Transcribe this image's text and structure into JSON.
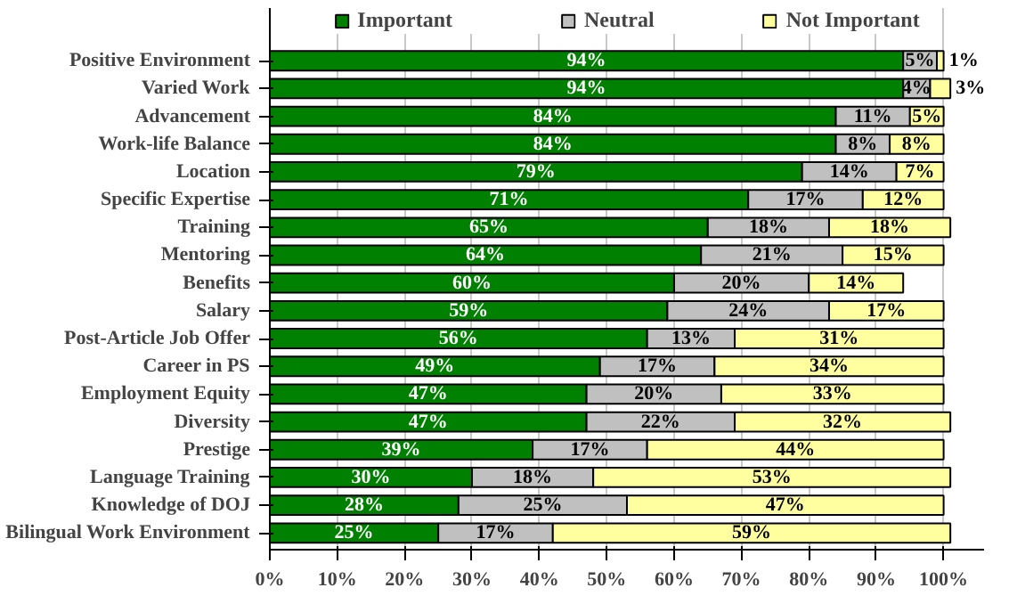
{
  "chart_data": {
    "type": "bar",
    "orientation": "horizontal",
    "stacked": true,
    "categories": [
      "Positive Environment",
      "Varied Work",
      "Advancement",
      "Work-life Balance",
      "Location",
      "Specific Expertise",
      "Training",
      "Mentoring",
      "Benefits",
      "Salary",
      "Post-Article Job Offer",
      "Career in PS",
      "Employment Equity",
      "Diversity",
      "Prestige",
      "Language Training",
      "Knowledge of DOJ",
      "Bilingual Work Environment"
    ],
    "series": [
      {
        "name": "Important",
        "color": "#008000",
        "values": [
          94,
          94,
          84,
          84,
          79,
          71,
          65,
          64,
          60,
          59,
          56,
          49,
          47,
          47,
          39,
          30,
          28,
          25
        ],
        "value_labels": [
          "94%",
          "94%",
          "84%",
          "84%",
          "79%",
          "71%",
          "65%",
          "64%",
          "60%",
          "59%",
          "56%",
          "49%",
          "47%",
          "47%",
          "39%",
          "30%",
          "28%",
          "25%"
        ]
      },
      {
        "name": "Neutral",
        "color": "#c0c0c0",
        "values": [
          5,
          4,
          11,
          8,
          14,
          17,
          18,
          21,
          20,
          24,
          13,
          17,
          20,
          22,
          17,
          18,
          25,
          17
        ],
        "value_labels": [
          "5%",
          "4%",
          "11%",
          "8%",
          "14%",
          "17%",
          "18%",
          "21%",
          "20%",
          "24%",
          "13%",
          "17%",
          "20%",
          "22%",
          "17%",
          "18%",
          "25%",
          "17%"
        ]
      },
      {
        "name": "Not Important",
        "color": "#ffffa0",
        "values": [
          1,
          3,
          5,
          8,
          7,
          12,
          18,
          15,
          14,
          17,
          31,
          34,
          33,
          32,
          44,
          53,
          47,
          59
        ],
        "value_labels": [
          "1%",
          "3%",
          "5%",
          "8%",
          "7%",
          "12%",
          "18%",
          "15%",
          "14%",
          "17%",
          "31%",
          "34%",
          "33%",
          "32%",
          "44%",
          "53%",
          "47%",
          "59%"
        ]
      }
    ],
    "xlim": [
      0,
      106
    ],
    "xticks": [
      {
        "value": 0,
        "label": "0%"
      },
      {
        "value": 10,
        "label": "10%"
      },
      {
        "value": 20,
        "label": "20%"
      },
      {
        "value": 30,
        "label": "30%"
      },
      {
        "value": 40,
        "label": "40%"
      },
      {
        "value": 50,
        "label": "50%"
      },
      {
        "value": 60,
        "label": "60%"
      },
      {
        "value": 70,
        "label": "70%"
      },
      {
        "value": 80,
        "label": "80%"
      },
      {
        "value": 90,
        "label": "90%"
      },
      {
        "value": 100,
        "label": "100%"
      }
    ],
    "grid": "x",
    "legend": "top"
  }
}
